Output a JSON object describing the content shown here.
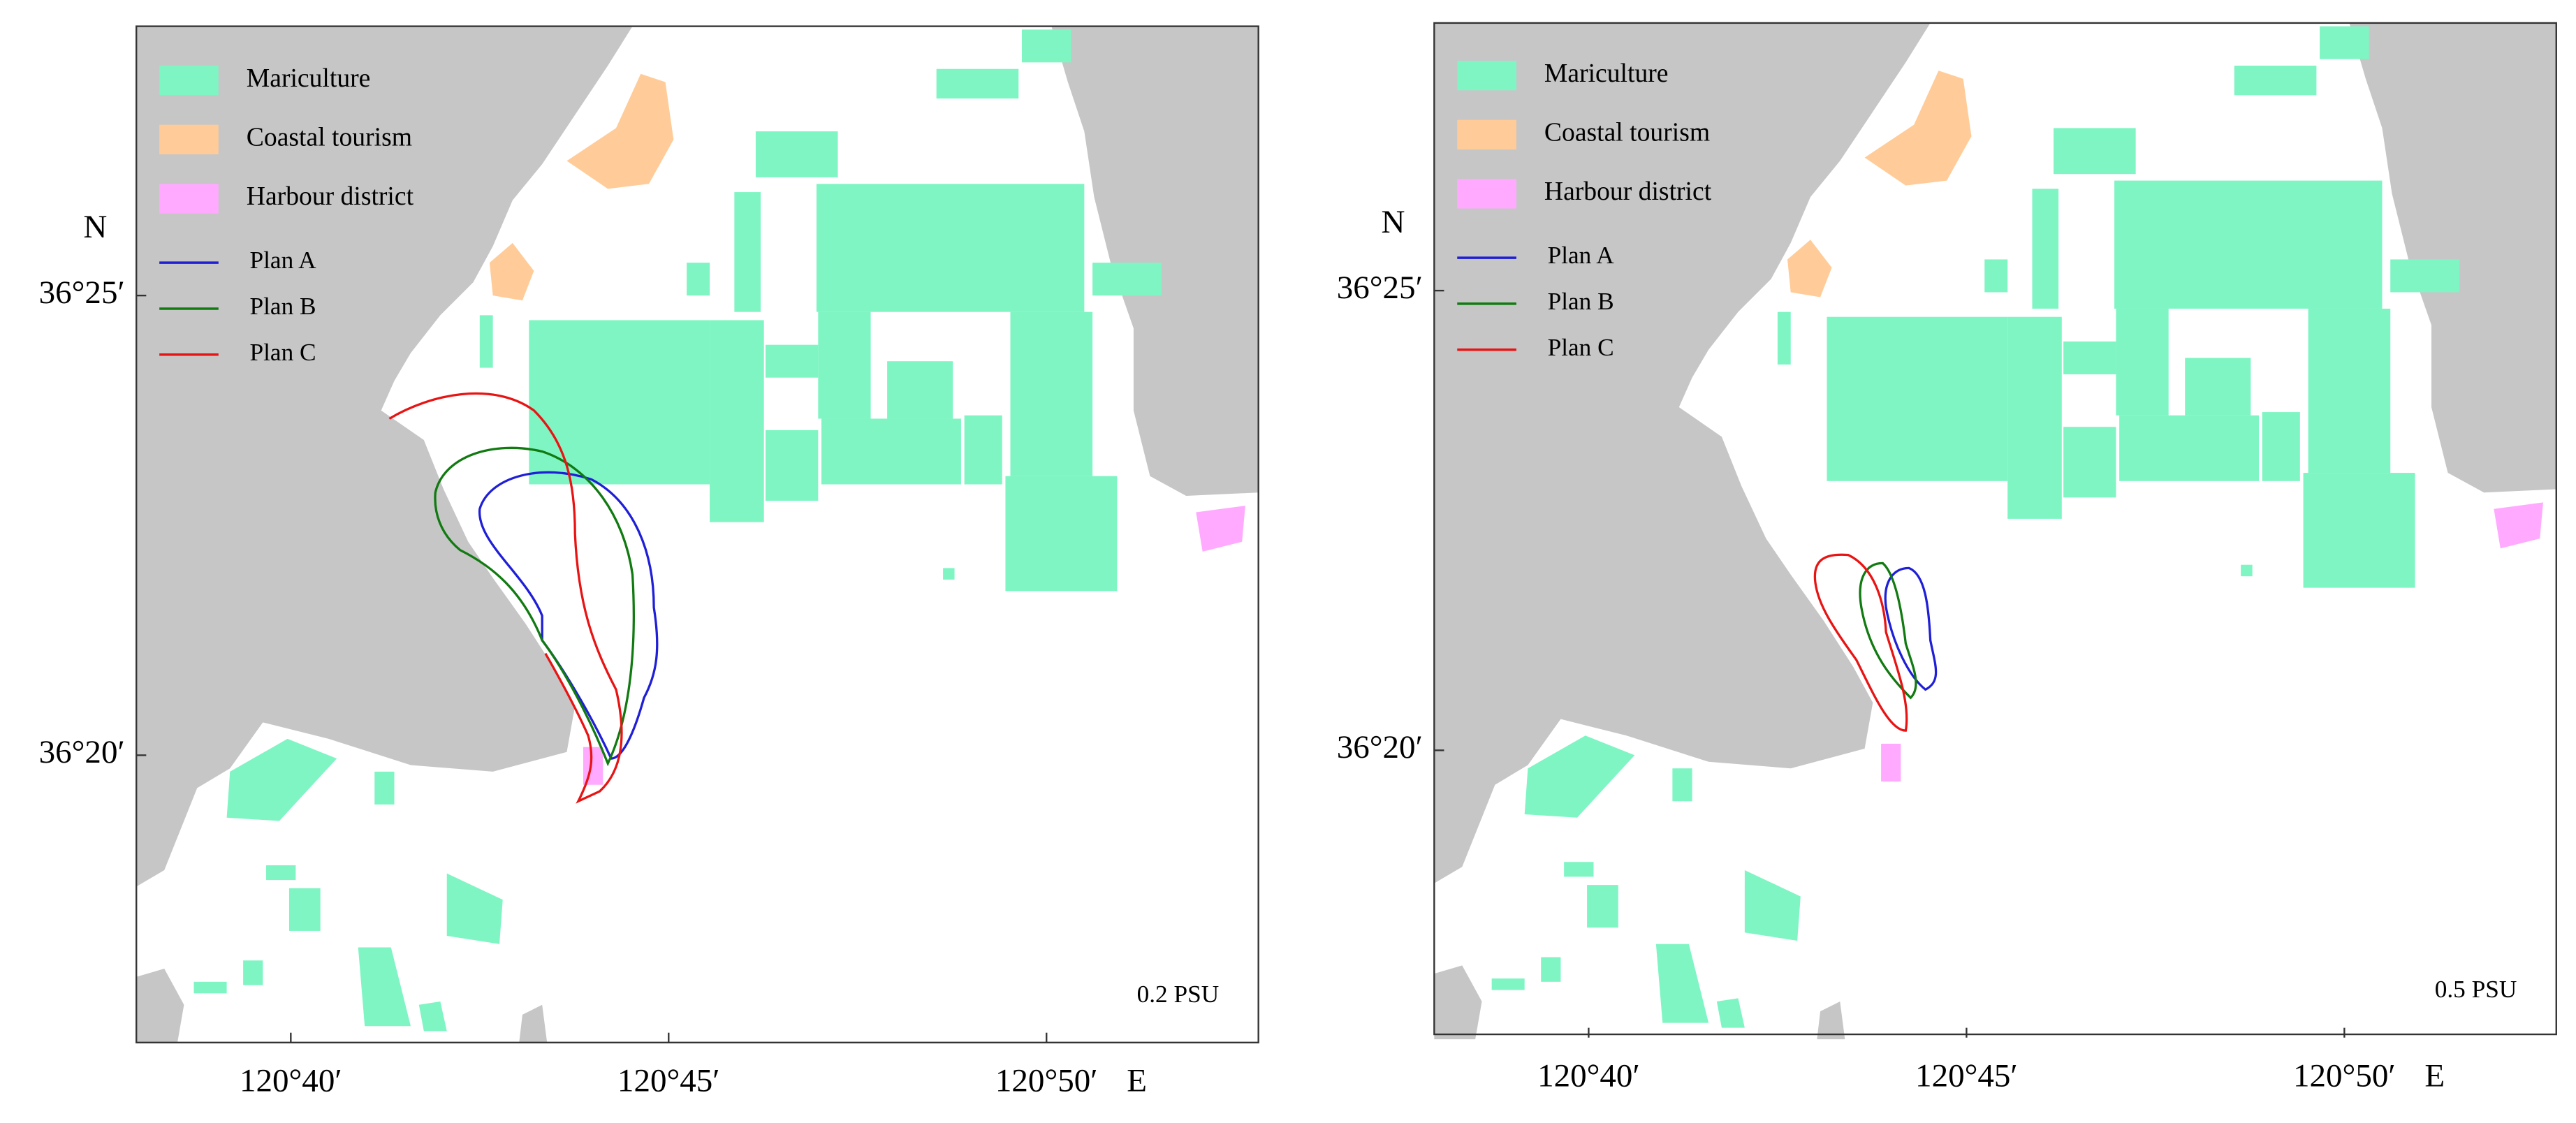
{
  "panels": [
    {
      "legend_patches": [
        {
          "label": "Mariculture",
          "color": "#7ff5c3"
        },
        {
          "label": "Coastal tourism",
          "color": "#ffcc99"
        },
        {
          "label": "Harbour district",
          "color": "#ffaaff"
        }
      ],
      "legend_lines": [
        {
          "label": "Plan A",
          "color": "#1f1fd8"
        },
        {
          "label": "Plan B",
          "color": "#117a11"
        },
        {
          "label": "Plan C",
          "color": "#e81414"
        }
      ],
      "north": "N",
      "east": "E",
      "lat_labels": [
        "36°25′",
        "36°20′"
      ],
      "lon_labels": [
        "120°40′",
        "120°45′",
        "120°50′"
      ],
      "annotation": "0.2 PSU"
    },
    {
      "legend_patches": [
        {
          "label": "Mariculture",
          "color": "#7ff5c3"
        },
        {
          "label": "Coastal tourism",
          "color": "#ffcc99"
        },
        {
          "label": "Harbour district",
          "color": "#ffaaff"
        }
      ],
      "legend_lines": [
        {
          "label": "Plan A",
          "color": "#1f1fd8"
        },
        {
          "label": "Plan B",
          "color": "#117a11"
        },
        {
          "label": "Plan C",
          "color": "#e81414"
        }
      ],
      "north": "N",
      "east": "E",
      "lat_labels": [
        "36°25′",
        "36°20′"
      ],
      "lon_labels": [
        "120°40′",
        "120°45′",
        "120°50′"
      ],
      "annotation": "0.5 PSU"
    }
  ]
}
